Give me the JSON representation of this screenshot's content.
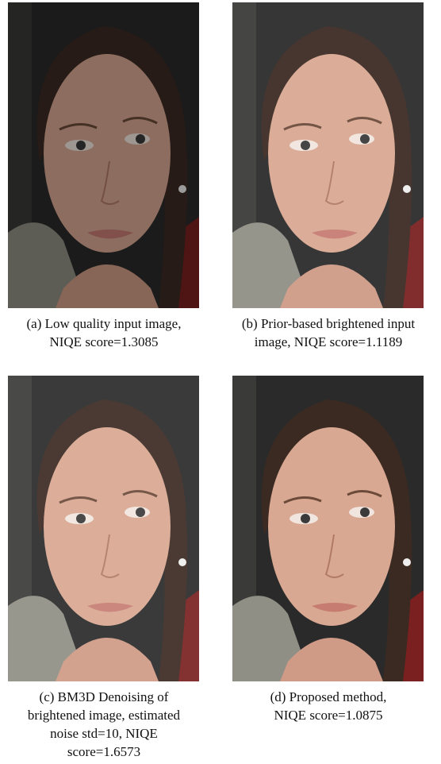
{
  "figures": [
    {
      "caption_lines": [
        "(a) Low quality input image,",
        "NIQE score=1.3085"
      ]
    },
    {
      "caption_lines": [
        "(b) Prior-based brightened input",
        "image, NIQE score=1.1189"
      ]
    },
    {
      "caption_lines": [
        "(c) BM3D Denoising of",
        "brightened image, estimated",
        "noise std=10, NIQE",
        "score=1.6573"
      ]
    },
    {
      "caption_lines": [
        "(d) Proposed method,",
        "NIQE score=1.0875"
      ]
    }
  ]
}
